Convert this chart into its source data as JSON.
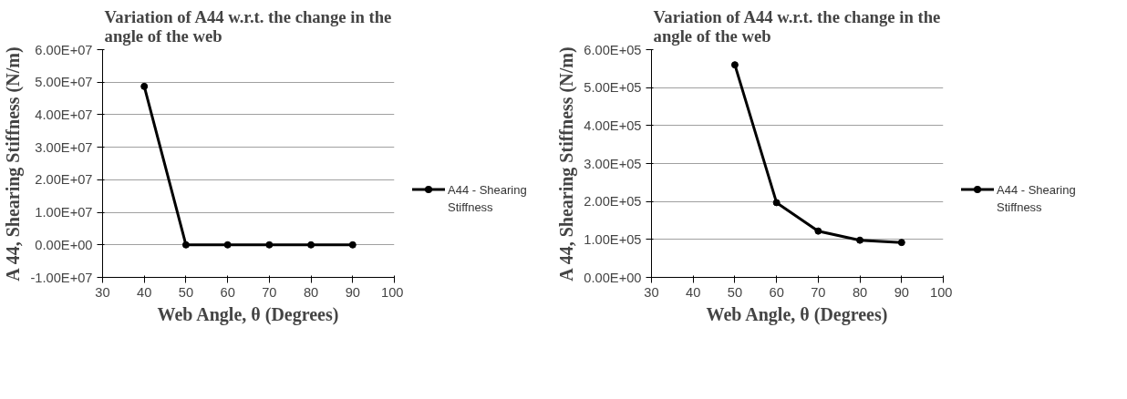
{
  "chart_data": [
    {
      "type": "line",
      "title": "Variation of A44 w.r.t. the change in the angle of the web",
      "xlabel": "Web Angle, θ (Degrees)",
      "ylabel": "A 44, Shearing Stiffness (N/m)",
      "x": [
        40,
        50,
        60,
        70,
        80,
        90
      ],
      "series": [
        {
          "name": "A44 - Shearing Stiffness",
          "color": "#000000",
          "values": [
            48700000,
            0,
            0,
            0,
            0,
            0
          ]
        }
      ],
      "xlim": [
        30,
        100
      ],
      "xticks": [
        30,
        40,
        50,
        60,
        70,
        80,
        90,
        100
      ],
      "ylim": [
        -10000000,
        60000000
      ],
      "yticks": [
        {
          "value": -10000000,
          "label": "-1.00E+07"
        },
        {
          "value": 0,
          "label": "0.00E+00"
        },
        {
          "value": 10000000,
          "label": "1.00E+07"
        },
        {
          "value": 20000000,
          "label": "2.00E+07"
        },
        {
          "value": 30000000,
          "label": "3.00E+07"
        },
        {
          "value": 40000000,
          "label": "4.00E+07"
        },
        {
          "value": 50000000,
          "label": "5.00E+07"
        },
        {
          "value": 60000000,
          "label": "6.00E+07"
        }
      ],
      "grid": "y",
      "legend": "right",
      "marker": "circle",
      "line_style": "solid"
    },
    {
      "type": "line",
      "title": "Variation of A44 w.r.t. the change in the angle of the web",
      "xlabel": "Web Angle, θ (Degrees)",
      "ylabel": "A 44, Shearing Stiffness (N/m)",
      "x": [
        50,
        60,
        70,
        80,
        90
      ],
      "series": [
        {
          "name": "A44 - Shearing Stiffness",
          "color": "#000000",
          "values": [
            560000,
            197000,
            122000,
            98000,
            92000
          ]
        }
      ],
      "xlim": [
        30,
        100
      ],
      "xticks": [
        30,
        40,
        50,
        60,
        70,
        80,
        90,
        100
      ],
      "ylim": [
        0,
        600000
      ],
      "yticks": [
        {
          "value": 0,
          "label": "0.00E+00"
        },
        {
          "value": 100000,
          "label": "1.00E+05"
        },
        {
          "value": 200000,
          "label": "2.00E+05"
        },
        {
          "value": 300000,
          "label": "3.00E+05"
        },
        {
          "value": 400000,
          "label": "4.00E+05"
        },
        {
          "value": 500000,
          "label": "5.00E+05"
        },
        {
          "value": 600000,
          "label": "6.00E+05"
        }
      ],
      "grid": "y",
      "legend": "right",
      "marker": "circle",
      "line_style": "solid"
    }
  ]
}
